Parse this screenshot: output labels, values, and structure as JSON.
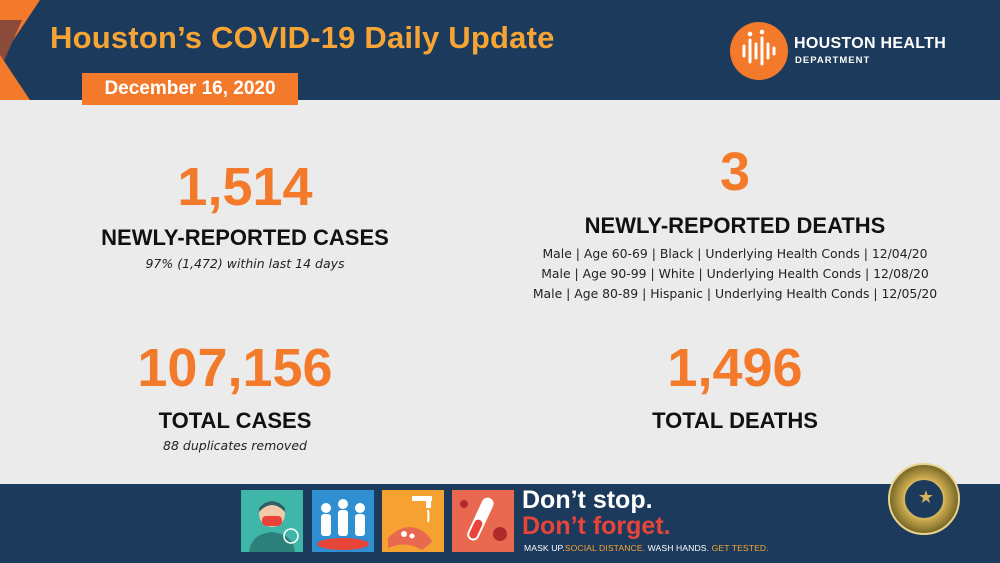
{
  "header": {
    "title": "Houston’s COVID-19 Daily Update",
    "date": "December 16, 2020",
    "logo": {
      "line1": "HOUSTON HEALTH",
      "line2": "DEPARTMENT",
      "icon": "houston-health-logo-icon"
    }
  },
  "stats": {
    "new_cases": {
      "value": "1,514",
      "label": "NEWLY-REPORTED CASES",
      "note": "97% (1,472) within last 14 days"
    },
    "new_deaths": {
      "value": "3",
      "label": "NEWLY-REPORTED DEATHS",
      "details": [
        "Male | Age 60-69 | Black | Underlying Health Conds | 12/04/20",
        "Male | Age 90-99 | White | Underlying Health Conds | 12/08/20",
        "Male | Age 80-89 | Hispanic | Underlying Health Conds | 12/05/20"
      ]
    },
    "total_cases": {
      "value": "107,156",
      "label": "TOTAL CASES",
      "note": "88 duplicates removed"
    },
    "total_deaths": {
      "value": "1,496",
      "label": "TOTAL DEATHS"
    }
  },
  "footer": {
    "slogan_line1": "Don’t stop.",
    "slogan_line2": "Don’t forget.",
    "tagline": [
      {
        "text": "MASK UP.",
        "highlight": false
      },
      {
        "text": "SOCIAL DISTANCE.",
        "highlight": true
      },
      {
        "text": "WASH HANDS.",
        "highlight": false
      },
      {
        "text": "GET TESTED.",
        "highlight": true
      }
    ],
    "tiles": [
      {
        "icon": "mask-person-icon",
        "color": "#3fb6a8"
      },
      {
        "icon": "social-distance-people-icon",
        "color": "#2f8fd1"
      },
      {
        "icon": "hand-washing-icon",
        "color": "#f5a233"
      },
      {
        "icon": "test-tube-virus-icon",
        "color": "#e8694f"
      }
    ],
    "seal": "city-of-houston-seal-icon"
  },
  "colors": {
    "navy": "#1c3a5c",
    "orange": "#f37a2b",
    "gold": "#f6a534",
    "red": "#e8443a",
    "background": "#ebebeb"
  }
}
